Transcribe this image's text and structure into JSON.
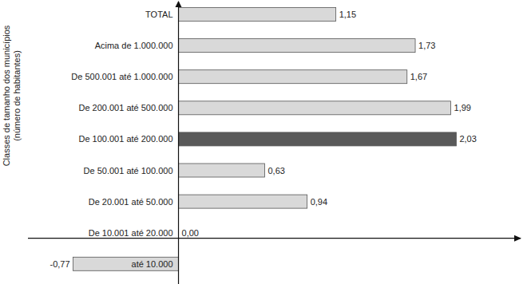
{
  "chart_data": {
    "type": "bar",
    "orientation": "horizontal",
    "y_label": [
      "Classes de tamanho dos municípios",
      "(número de habitantes)"
    ],
    "categories": [
      "TOTAL",
      "Acima de 1.000.000",
      "De 500.001 até 1.000.000",
      "De 200.001 até 500.000",
      "De 100.001 até 200.000",
      "De 50.001 até 100.000",
      "De 20.001 até 50.000",
      "De 10.001 até 20.000",
      "até 10.000"
    ],
    "values": [
      1.15,
      1.73,
      1.67,
      1.99,
      2.03,
      0.63,
      0.94,
      0.0,
      -0.77
    ],
    "value_labels": [
      "1,15",
      "1,73",
      "1,67",
      "1,99",
      "2,03",
      "0,63",
      "0,94",
      "0,00",
      "-0,77"
    ],
    "colors": [
      "#d9d9d9",
      "#d9d9d9",
      "#d9d9d9",
      "#d9d9d9",
      "#595959",
      "#d9d9d9",
      "#d9d9d9",
      "#d9d9d9",
      "#d9d9d9"
    ],
    "xlim": [
      -1.1,
      2.5
    ],
    "data_labels": true,
    "tick_labels": "y",
    "grid": false
  }
}
